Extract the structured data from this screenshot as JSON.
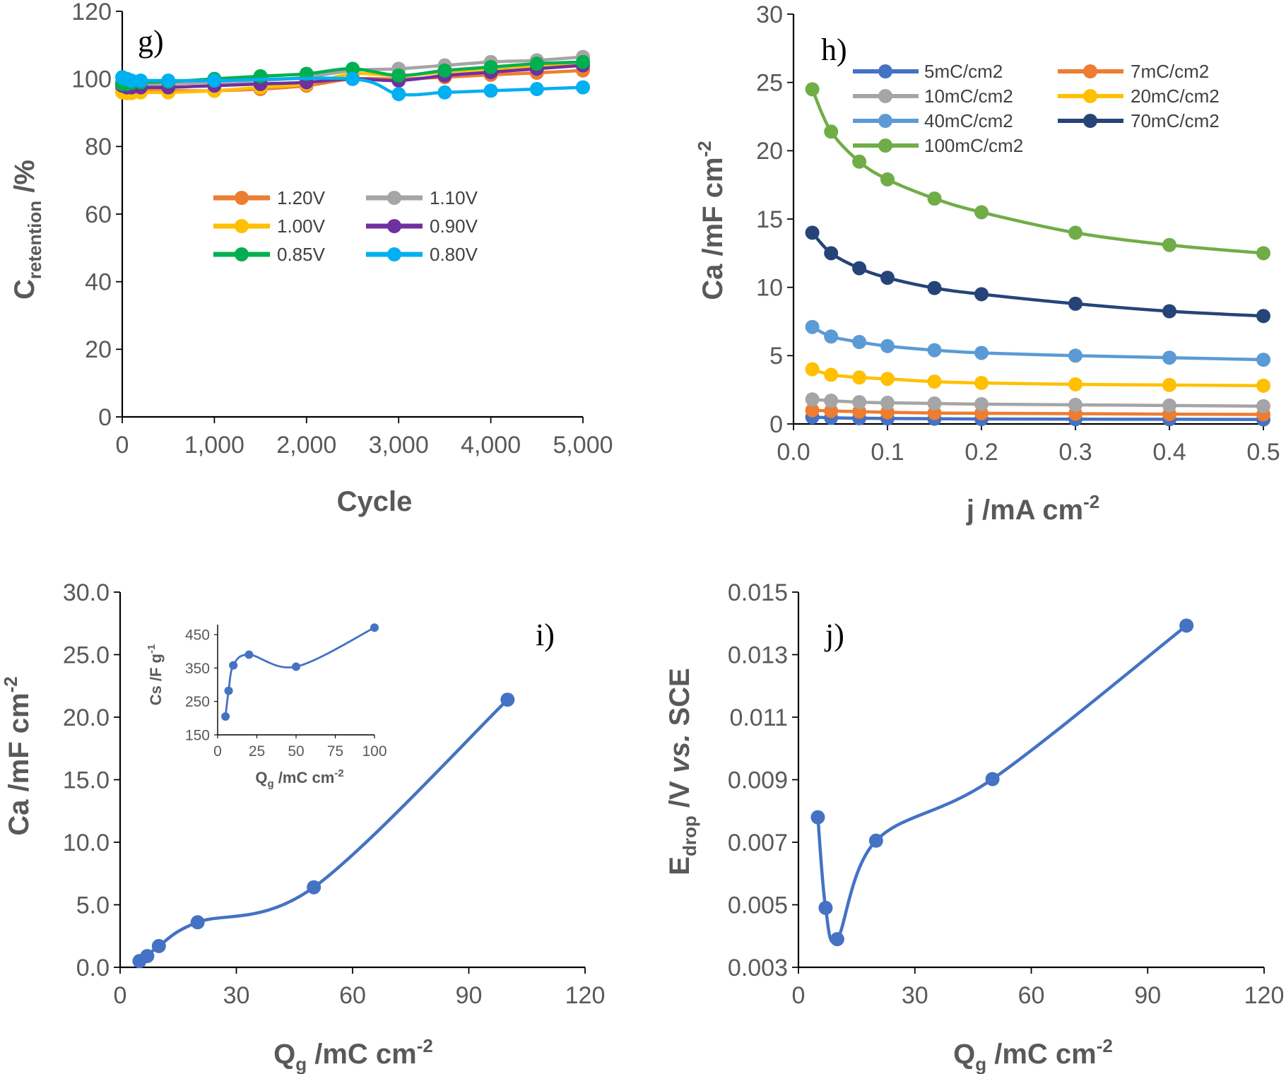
{
  "chart_data": [
    {
      "id": "g",
      "type": "line",
      "panel_label": "g)",
      "xlabel": "Cycle",
      "ylabel_main": "C",
      "ylabel_sub": "retention",
      "ylabel_rest": " /%",
      "xlim": [
        0,
        5000
      ],
      "ylim": [
        0,
        120
      ],
      "xticks": [
        0,
        1000,
        2000,
        3000,
        4000,
        5000
      ],
      "xtick_labels": [
        "0",
        "1,000",
        "2,000",
        "3,000",
        "4,000",
        "5,000"
      ],
      "yticks": [
        0,
        20,
        40,
        60,
        80,
        100,
        120
      ],
      "ytick_labels": [
        "0",
        "20",
        "40",
        "60",
        "80",
        "100",
        "120"
      ],
      "legend_position": "center",
      "series": [
        {
          "name": "1.20V",
          "color": "#ED7D31",
          "x": [
            0,
            50,
            100,
            200,
            500,
            1000,
            1500,
            2000,
            2500,
            3000,
            3500,
            4000,
            4500,
            5000
          ],
          "y": [
            97,
            96.8,
            96.5,
            96.5,
            96.5,
            96.5,
            97,
            98,
            100,
            100,
            100.5,
            101.2,
            101.8,
            102.5
          ]
        },
        {
          "name": "1.10V",
          "color": "#A5A5A5",
          "x": [
            0,
            50,
            100,
            200,
            500,
            1000,
            1500,
            2000,
            2500,
            3000,
            3500,
            4000,
            4500,
            5000
          ],
          "y": [
            99,
            98.5,
            98.2,
            98.2,
            98.5,
            99,
            99.5,
            100.5,
            102.5,
            103,
            104,
            105,
            105.5,
            106.5
          ]
        },
        {
          "name": "1.00V",
          "color": "#FFC000",
          "x": [
            0,
            50,
            100,
            200,
            500,
            1000,
            1500,
            2000,
            2500,
            3000,
            3500,
            4000,
            4500,
            5000
          ],
          "y": [
            96,
            95.8,
            95.8,
            96,
            96,
            96.5,
            97.5,
            98.5,
            101.5,
            101,
            102,
            103,
            103.5,
            104.5
          ]
        },
        {
          "name": "0.90V",
          "color": "#7030A0",
          "x": [
            0,
            50,
            100,
            200,
            500,
            1000,
            1500,
            2000,
            2500,
            3000,
            3500,
            4000,
            4500,
            5000
          ],
          "y": [
            98,
            97.5,
            97.5,
            97.5,
            97.5,
            98,
            98.5,
            99,
            100,
            99.5,
            101,
            102,
            103,
            104
          ]
        },
        {
          "name": "0.85V",
          "color": "#00B050",
          "x": [
            0,
            50,
            100,
            200,
            500,
            1000,
            1500,
            2000,
            2500,
            3000,
            3500,
            4000,
            4500,
            5000
          ],
          "y": [
            98.5,
            98.5,
            98.8,
            99,
            99.2,
            100,
            100.8,
            101.5,
            103,
            101,
            102.5,
            103.5,
            104.5,
            105
          ]
        },
        {
          "name": "0.80V",
          "color": "#00B0F0",
          "x": [
            0,
            50,
            100,
            200,
            500,
            1000,
            2500,
            3000,
            3500,
            4000,
            4500,
            5000
          ],
          "y": [
            100.5,
            100,
            99.5,
            99.5,
            99.5,
            99.5,
            100,
            95.5,
            96,
            96.5,
            97,
            97.5
          ]
        }
      ]
    },
    {
      "id": "h",
      "type": "line",
      "panel_label": "h)",
      "xlabel_main": "j /mA cm",
      "xlabel_sup": "-2",
      "ylabel_main": "Ca /mF cm",
      "ylabel_sup": "-2",
      "xlim": [
        0,
        0.5
      ],
      "ylim": [
        0,
        30
      ],
      "xticks": [
        0,
        0.1,
        0.2,
        0.3,
        0.4,
        0.5
      ],
      "xtick_labels": [
        "0.0",
        "0.1",
        "0.2",
        "0.3",
        "0.4",
        "0.5"
      ],
      "yticks": [
        0,
        5,
        10,
        15,
        20,
        25,
        30
      ],
      "ytick_labels": [
        "0",
        "5",
        "10",
        "15",
        "20",
        "25",
        "30"
      ],
      "legend_position": "top",
      "x": [
        0.02,
        0.04,
        0.07,
        0.1,
        0.15,
        0.2,
        0.3,
        0.4,
        0.5
      ],
      "series": [
        {
          "name": "5mC/cm2",
          "color": "#4472C4",
          "values": [
            0.5,
            0.45,
            0.42,
            0.4,
            0.38,
            0.36,
            0.35,
            0.34,
            0.33
          ]
        },
        {
          "name": "7mC/cm2",
          "color": "#ED7D31",
          "values": [
            1.0,
            0.95,
            0.9,
            0.85,
            0.8,
            0.78,
            0.75,
            0.72,
            0.7
          ]
        },
        {
          "name": "10mC/cm2",
          "color": "#A5A5A5",
          "values": [
            1.8,
            1.7,
            1.6,
            1.55,
            1.5,
            1.45,
            1.4,
            1.35,
            1.3
          ]
        },
        {
          "name": "20mC/cm2",
          "color": "#FFC000",
          "values": [
            4.0,
            3.6,
            3.4,
            3.3,
            3.1,
            3.0,
            2.9,
            2.85,
            2.8
          ]
        },
        {
          "name": "40mC/cm2",
          "color": "#5B9BD5",
          "values": [
            7.1,
            6.4,
            6.0,
            5.7,
            5.4,
            5.2,
            5.0,
            4.85,
            4.7
          ]
        },
        {
          "name": "70mC/cm2",
          "color": "#264478",
          "values": [
            14.0,
            12.5,
            11.4,
            10.7,
            9.95,
            9.5,
            8.8,
            8.25,
            7.9
          ]
        },
        {
          "name": "100mC/cm2",
          "color": "#70AD47",
          "values": [
            24.5,
            21.4,
            19.2,
            17.9,
            16.5,
            15.5,
            14.0,
            13.1,
            12.5
          ]
        }
      ]
    },
    {
      "id": "i",
      "type": "line",
      "panel_label": "i)",
      "xlabel_main": "Q",
      "xlabel_sub": "g",
      "xlabel_rest": " /mC cm",
      "xlabel_sup": "-2",
      "ylabel_main": "Ca /mF cm",
      "ylabel_sup": "-2",
      "xlim": [
        0,
        120
      ],
      "ylim": [
        0,
        30
      ],
      "xticks": [
        0,
        30,
        60,
        90,
        120
      ],
      "xtick_labels": [
        "0",
        "30",
        "60",
        "90",
        "120"
      ],
      "yticks": [
        0,
        5,
        10,
        15,
        20,
        25,
        30
      ],
      "ytick_labels": [
        "0.0",
        "5.0",
        "10.0",
        "15.0",
        "20.0",
        "25.0",
        "30.0"
      ],
      "series": [
        {
          "name": "Ca",
          "color": "#4472C4",
          "x": [
            5,
            7,
            10,
            20,
            50,
            100
          ],
          "y": [
            0.5,
            0.9,
            1.7,
            3.6,
            6.4,
            21.4
          ]
        }
      ],
      "inset": {
        "type": "line",
        "xlabel_main": "Q",
        "xlabel_sub": "g",
        "xlabel_rest": " /mC cm",
        "xlabel_sup": "-2",
        "ylabel_main": "Cs /F g",
        "ylabel_sup": "-1",
        "xlim": [
          0,
          100
        ],
        "ylim": [
          150,
          480
        ],
        "xticks": [
          0,
          25,
          50,
          75,
          100
        ],
        "xtick_labels": [
          "0",
          "25",
          "50",
          "75",
          "100"
        ],
        "yticks": [
          150,
          250,
          350,
          450
        ],
        "ytick_labels": [
          "150",
          "250",
          "350",
          "450"
        ],
        "series": [
          {
            "name": "Cs",
            "color": "#4472C4",
            "x": [
              5,
              7,
              10,
              20,
              50,
              100
            ],
            "y": [
              205,
              282,
              358,
              390,
              354,
              471
            ]
          }
        ]
      }
    },
    {
      "id": "j",
      "type": "line",
      "panel_label": "j)",
      "xlabel_main": "Q",
      "xlabel_sub": "g",
      "xlabel_rest": " /mC cm",
      "xlabel_sup": "-2",
      "ylabel_main": "E",
      "ylabel_sub": "drop",
      "ylabel_rest1": " /V ",
      "ylabel_italic": "vs.",
      "ylabel_rest2": " SCE",
      "xlim": [
        0,
        120
      ],
      "ylim": [
        0.003,
        0.015
      ],
      "xticks": [
        0,
        30,
        60,
        90,
        120
      ],
      "xtick_labels": [
        "0",
        "30",
        "60",
        "90",
        "120"
      ],
      "yticks": [
        0.003,
        0.005,
        0.007,
        0.009,
        0.011,
        0.013,
        0.015
      ],
      "ytick_labels": [
        "0.003",
        "0.005",
        "0.007",
        "0.009",
        "0.011",
        "0.013",
        "0.015"
      ],
      "series": [
        {
          "name": "Edrop",
          "color": "#4472C4",
          "x": [
            5,
            7,
            10,
            20,
            50,
            100
          ],
          "y": [
            0.0078,
            0.0049,
            0.0039,
            0.00705,
            0.00902,
            0.01393
          ]
        }
      ]
    }
  ]
}
